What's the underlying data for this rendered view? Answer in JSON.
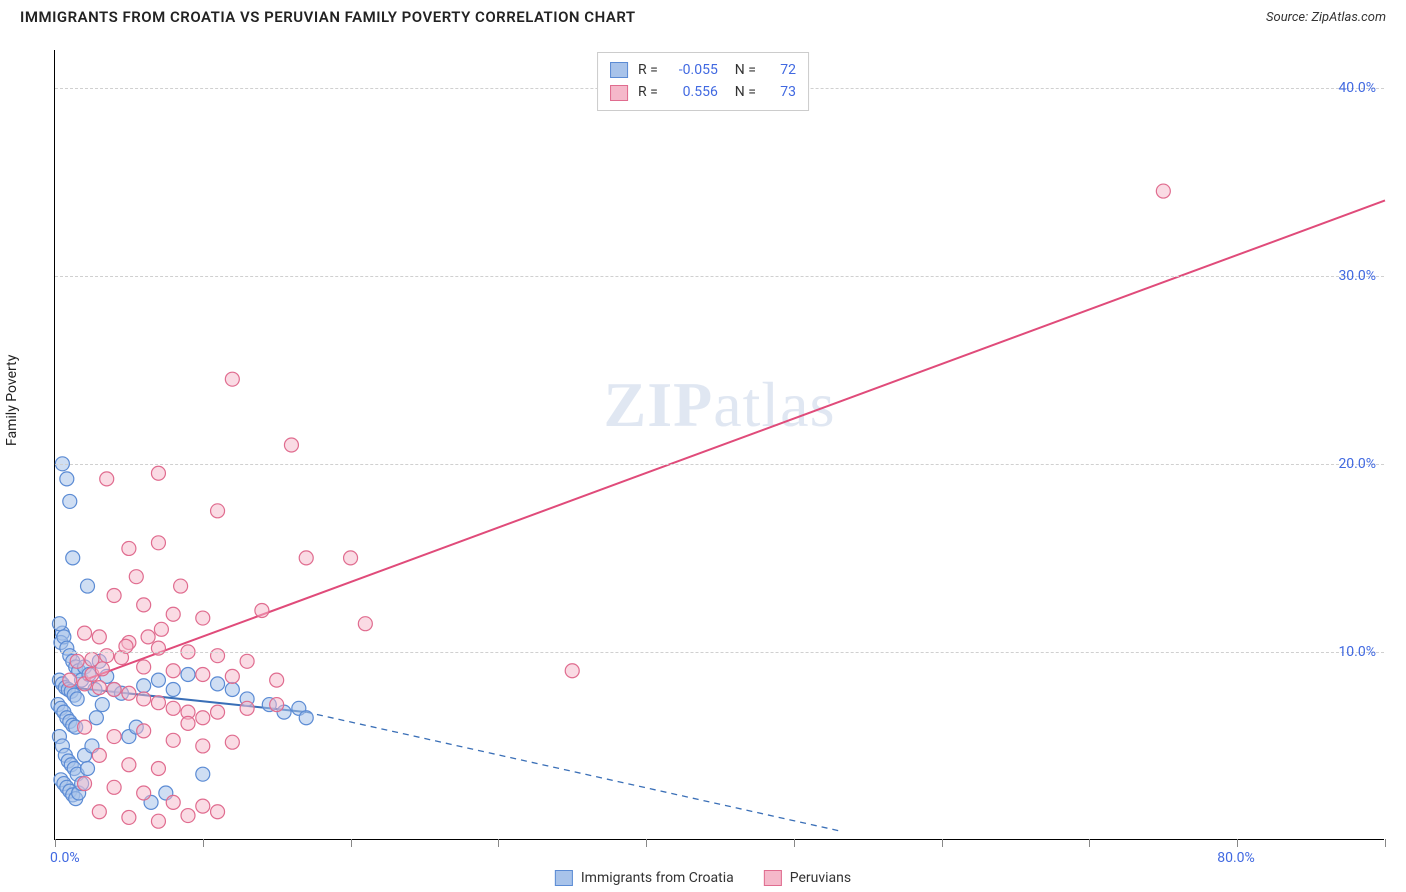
{
  "header": {
    "title": "IMMIGRANTS FROM CROATIA VS PERUVIAN FAMILY POVERTY CORRELATION CHART",
    "source_prefix": "Source: ",
    "source": "ZipAtlas.com"
  },
  "chart": {
    "type": "scatter",
    "y_axis_title": "Family Poverty",
    "xlim": [
      0,
      90
    ],
    "ylim": [
      0,
      42
    ],
    "x_ticks": [
      0,
      10,
      20,
      30,
      40,
      50,
      60,
      70,
      80,
      90
    ],
    "y_ticks": [
      10,
      20,
      30,
      40
    ],
    "x_tick_labels": {
      "0": "0.0%",
      "80": "80.0%"
    },
    "y_tick_labels": {
      "10": "10.0%",
      "20": "20.0%",
      "30": "30.0%",
      "40": "40.0%"
    },
    "grid_color": "#d0d0d0",
    "background_color": "#ffffff",
    "marker_radius": 7,
    "marker_stroke_width": 1.2,
    "line_width": 2,
    "watermark": "ZIPatlas",
    "series": [
      {
        "name": "Immigrants from Croatia",
        "fill": "#a8c3ea",
        "stroke": "#5b8bd4",
        "fill_opacity": 0.55,
        "R": "-0.055",
        "N": "72",
        "trend": {
          "x1": 0,
          "y1": 8.2,
          "x2": 17,
          "y2": 6.8,
          "solid_until_x": 17,
          "dash_to_x": 53,
          "dash_to_y": 0.5,
          "color": "#3a6fb7"
        },
        "points": [
          [
            0.5,
            20
          ],
          [
            0.8,
            19.2
          ],
          [
            1.0,
            18.0
          ],
          [
            0.5,
            11.0
          ],
          [
            0.3,
            11.5
          ],
          [
            1.2,
            15.0
          ],
          [
            2.2,
            13.5
          ],
          [
            0.4,
            10.5
          ],
          [
            0.6,
            10.8
          ],
          [
            0.8,
            10.2
          ],
          [
            1.0,
            9.8
          ],
          [
            1.2,
            9.5
          ],
          [
            1.4,
            9.2
          ],
          [
            1.6,
            9.0
          ],
          [
            0.3,
            8.5
          ],
          [
            0.5,
            8.3
          ],
          [
            0.7,
            8.1
          ],
          [
            0.9,
            8.0
          ],
          [
            1.1,
            7.9
          ],
          [
            1.3,
            7.7
          ],
          [
            1.5,
            7.5
          ],
          [
            0.2,
            7.2
          ],
          [
            0.4,
            7.0
          ],
          [
            0.6,
            6.8
          ],
          [
            0.8,
            6.5
          ],
          [
            1.0,
            6.3
          ],
          [
            1.2,
            6.1
          ],
          [
            1.4,
            6.0
          ],
          [
            1.8,
            8.5
          ],
          [
            2.0,
            9.2
          ],
          [
            2.3,
            8.8
          ],
          [
            2.7,
            8.0
          ],
          [
            3.0,
            9.5
          ],
          [
            3.5,
            8.7
          ],
          [
            4.0,
            8.0
          ],
          [
            0.3,
            5.5
          ],
          [
            0.5,
            5.0
          ],
          [
            0.7,
            4.5
          ],
          [
            0.9,
            4.2
          ],
          [
            1.1,
            4.0
          ],
          [
            1.3,
            3.8
          ],
          [
            1.5,
            3.5
          ],
          [
            0.4,
            3.2
          ],
          [
            0.6,
            3.0
          ],
          [
            0.8,
            2.8
          ],
          [
            1.0,
            2.6
          ],
          [
            1.2,
            2.4
          ],
          [
            1.4,
            2.2
          ],
          [
            1.6,
            2.5
          ],
          [
            1.8,
            3.0
          ],
          [
            2.0,
            4.5
          ],
          [
            2.2,
            3.8
          ],
          [
            2.5,
            5.0
          ],
          [
            2.8,
            6.5
          ],
          [
            3.2,
            7.2
          ],
          [
            4.5,
            7.8
          ],
          [
            5.0,
            5.5
          ],
          [
            5.5,
            6.0
          ],
          [
            6.0,
            8.2
          ],
          [
            7.0,
            8.5
          ],
          [
            8.0,
            8.0
          ],
          [
            9.0,
            8.8
          ],
          [
            10.0,
            3.5
          ],
          [
            11.0,
            8.3
          ],
          [
            12.0,
            8.0
          ],
          [
            13.0,
            7.5
          ],
          [
            14.5,
            7.2
          ],
          [
            15.5,
            6.8
          ],
          [
            16.5,
            7.0
          ],
          [
            17.0,
            6.5
          ],
          [
            6.5,
            2.0
          ],
          [
            7.5,
            2.5
          ]
        ]
      },
      {
        "name": "Peruvians",
        "fill": "#f5b8ca",
        "stroke": "#e06c8f",
        "fill_opacity": 0.5,
        "R": "0.556",
        "N": "73",
        "trend": {
          "x1": 2,
          "y1": 8.5,
          "x2": 90,
          "y2": 34,
          "color": "#e04b7a"
        },
        "points": [
          [
            75,
            34.5
          ],
          [
            12,
            24.5
          ],
          [
            16,
            21.0
          ],
          [
            7,
            19.5
          ],
          [
            3.5,
            19.2
          ],
          [
            11,
            17.5
          ],
          [
            5,
            15.5
          ],
          [
            7,
            15.8
          ],
          [
            17,
            15.0
          ],
          [
            20,
            15.0
          ],
          [
            4,
            13.0
          ],
          [
            6,
            12.5
          ],
          [
            8,
            12.0
          ],
          [
            10,
            11.8
          ],
          [
            14,
            12.2
          ],
          [
            21,
            11.5
          ],
          [
            2,
            11.0
          ],
          [
            3,
            10.8
          ],
          [
            5,
            10.5
          ],
          [
            7,
            10.2
          ],
          [
            9,
            10.0
          ],
          [
            11,
            9.8
          ],
          [
            13,
            9.5
          ],
          [
            1.5,
            9.5
          ],
          [
            2.5,
            9.6
          ],
          [
            3.5,
            9.8
          ],
          [
            4.5,
            9.7
          ],
          [
            6,
            9.2
          ],
          [
            8,
            9.0
          ],
          [
            10,
            8.8
          ],
          [
            12,
            8.7
          ],
          [
            15,
            8.5
          ],
          [
            35,
            9.0
          ],
          [
            1,
            8.5
          ],
          [
            2,
            8.3
          ],
          [
            3,
            8.1
          ],
          [
            4,
            8.0
          ],
          [
            5,
            7.8
          ],
          [
            6,
            7.5
          ],
          [
            7,
            7.3
          ],
          [
            8,
            7.0
          ],
          [
            9,
            6.8
          ],
          [
            10,
            6.5
          ],
          [
            11,
            6.8
          ],
          [
            13,
            7.0
          ],
          [
            15,
            7.2
          ],
          [
            2,
            6.0
          ],
          [
            4,
            5.5
          ],
          [
            6,
            5.8
          ],
          [
            8,
            5.3
          ],
          [
            10,
            5.0
          ],
          [
            12,
            5.2
          ],
          [
            3,
            4.5
          ],
          [
            5,
            4.0
          ],
          [
            7,
            3.8
          ],
          [
            9,
            6.2
          ],
          [
            2,
            3.0
          ],
          [
            4,
            2.8
          ],
          [
            6,
            2.5
          ],
          [
            8,
            2.0
          ],
          [
            10,
            1.8
          ],
          [
            3,
            1.5
          ],
          [
            5,
            1.2
          ],
          [
            7,
            1.0
          ],
          [
            9,
            1.3
          ],
          [
            11,
            1.5
          ],
          [
            2.5,
            8.8
          ],
          [
            3.2,
            9.1
          ],
          [
            4.8,
            10.3
          ],
          [
            6.3,
            10.8
          ],
          [
            7.2,
            11.2
          ],
          [
            8.5,
            13.5
          ],
          [
            5.5,
            14.0
          ]
        ]
      }
    ],
    "legend_bottom": [
      {
        "label": "Immigrants from Croatia",
        "fill": "#a8c3ea",
        "stroke": "#5b8bd4"
      },
      {
        "label": "Peruvians",
        "fill": "#f5b8ca",
        "stroke": "#e06c8f"
      }
    ]
  }
}
